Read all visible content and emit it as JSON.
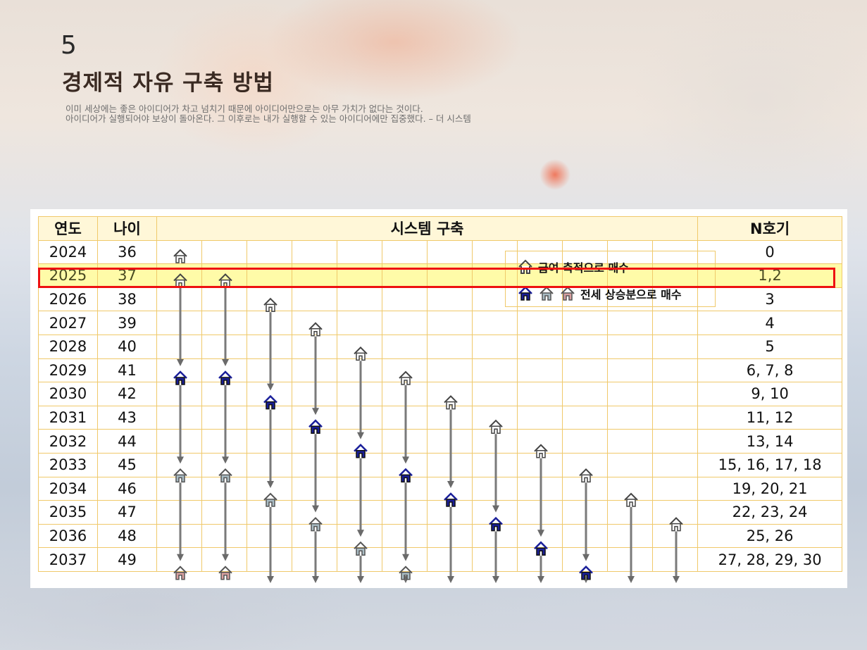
{
  "header": {
    "number": "5",
    "title": "경제적 자유 구축 방법",
    "quote_line1": "이미 세상에는 좋은 아이디어가 차고 넘치기 때문에 아이디어만으로는 아무 가치가 없다는 것이다.",
    "quote_line2": "아이디어가 실행되어야 보상이 돌아온다. 그 이후로는 내가 실행할 수 있는 아이디어에만 집중했다. – 더 시스템"
  },
  "table": {
    "headers": {
      "year": "연도",
      "age": "나이",
      "system": "시스템 구축",
      "n": "N호기"
    },
    "rows": [
      {
        "year": "2024",
        "age": "36",
        "n": "0"
      },
      {
        "year": "2025",
        "age": "37",
        "n": "1,2"
      },
      {
        "year": "2026",
        "age": "38",
        "n": "3"
      },
      {
        "year": "2027",
        "age": "39",
        "n": "4"
      },
      {
        "year": "2028",
        "age": "40",
        "n": "5"
      },
      {
        "year": "2029",
        "age": "41",
        "n": "6, 7, 8"
      },
      {
        "year": "2030",
        "age": "42",
        "n": "9, 10"
      },
      {
        "year": "2031",
        "age": "43",
        "n": "11, 12"
      },
      {
        "year": "2032",
        "age": "44",
        "n": "13, 14"
      },
      {
        "year": "2033",
        "age": "45",
        "n": "15, 16, 17, 18"
      },
      {
        "year": "2034",
        "age": "46",
        "n": "19, 20, 21"
      },
      {
        "year": "2035",
        "age": "47",
        "n": "22, 23, 24"
      },
      {
        "year": "2036",
        "age": "48",
        "n": "25, 26"
      },
      {
        "year": "2037",
        "age": "49",
        "n": "27, 28, 29, 30"
      }
    ],
    "highlighted_row": "2025"
  },
  "legend": {
    "item1": "급여 축적으로 매수",
    "item2": "전세 상승분으로 매수"
  },
  "house_colors": {
    "outline": "#ffffff",
    "navy": "#1a1f9a",
    "gray": "#a9bcc4",
    "pink": "#d8a0a0"
  },
  "icon_names": [
    "house-outline-icon",
    "house-navy-icon",
    "house-gray-icon",
    "house-pink-icon",
    "down-arrow-icon"
  ]
}
